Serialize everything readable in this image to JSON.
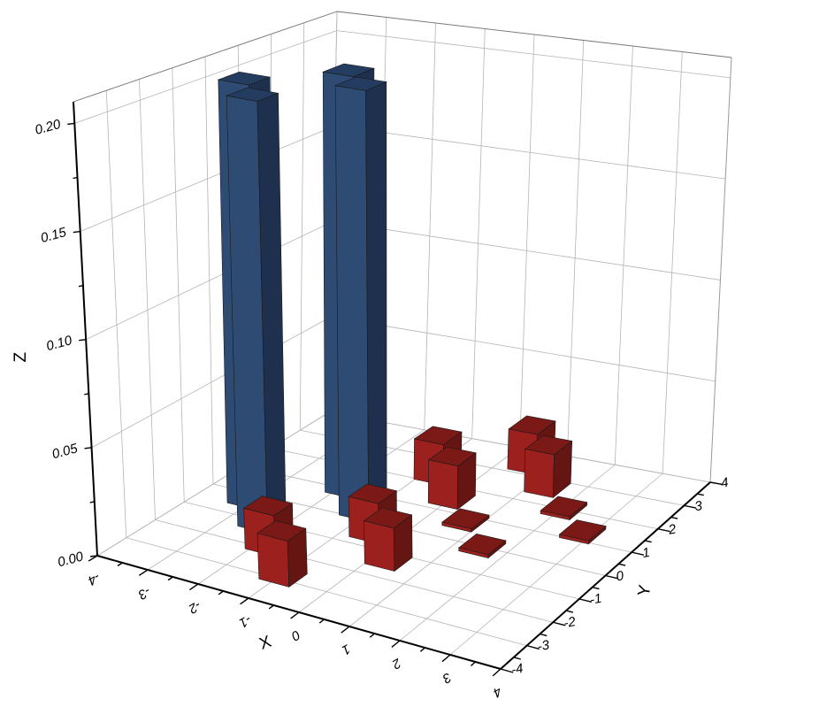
{
  "chart_data": {
    "type": "bar3d",
    "xlabel": "X",
    "ylabel": "Y",
    "zlabel": "Z",
    "xlim": [
      -4,
      4
    ],
    "ylim": [
      -4,
      4
    ],
    "zlim": [
      0,
      0.21
    ],
    "xticks": [
      "-4",
      "-3",
      "-2",
      "-1",
      "0",
      "1",
      "2",
      "3",
      "4"
    ],
    "yticks": [
      "-4",
      "-3",
      "-2",
      "-1",
      "0",
      "1",
      "2",
      "3",
      "4"
    ],
    "zticks": [
      "0.00",
      "0.05",
      "0.10",
      "0.15",
      "0.20"
    ],
    "grid": true,
    "colors": {
      "blue": "#2d4b73",
      "red": "#9b201e"
    },
    "bars": [
      {
        "x": -3.05,
        "y": -0.29,
        "z": 0.205,
        "color": "blue"
      },
      {
        "x": -2.37,
        "y": -1.1,
        "z": 0.205,
        "color": "blue"
      },
      {
        "x": -1.77,
        "y": -1.89,
        "z": 0.019,
        "color": "red"
      },
      {
        "x": -0.94,
        "y": -2.87,
        "z": 0.021,
        "color": "red"
      },
      {
        "x": -1.82,
        "y": 1.02,
        "z": 0.206,
        "color": "blue"
      },
      {
        "x": -1.1,
        "y": 0.27,
        "z": 0.207,
        "color": "blue"
      },
      {
        "x": -0.48,
        "y": -0.46,
        "z": 0.019,
        "color": "red"
      },
      {
        "x": 0.31,
        "y": -1.31,
        "z": 0.02,
        "color": "red"
      },
      {
        "x": -0.72,
        "y": 2.28,
        "z": 0.02,
        "color": "red"
      },
      {
        "x": 0.03,
        "y": 1.49,
        "z": 0.021,
        "color": "red"
      },
      {
        "x": 0.72,
        "y": 0.77,
        "z": 0.0015,
        "color": "red"
      },
      {
        "x": 1.5,
        "y": -0.02,
        "z": 0.0015,
        "color": "red"
      },
      {
        "x": 0.58,
        "y": 3.4,
        "z": 0.02,
        "color": "red"
      },
      {
        "x": 1.34,
        "y": 2.67,
        "z": 0.021,
        "color": "red"
      },
      {
        "x": 2.06,
        "y": 1.99,
        "z": 0.0015,
        "color": "red"
      },
      {
        "x": 2.84,
        "y": 1.28,
        "z": 0.0015,
        "color": "red"
      }
    ]
  }
}
